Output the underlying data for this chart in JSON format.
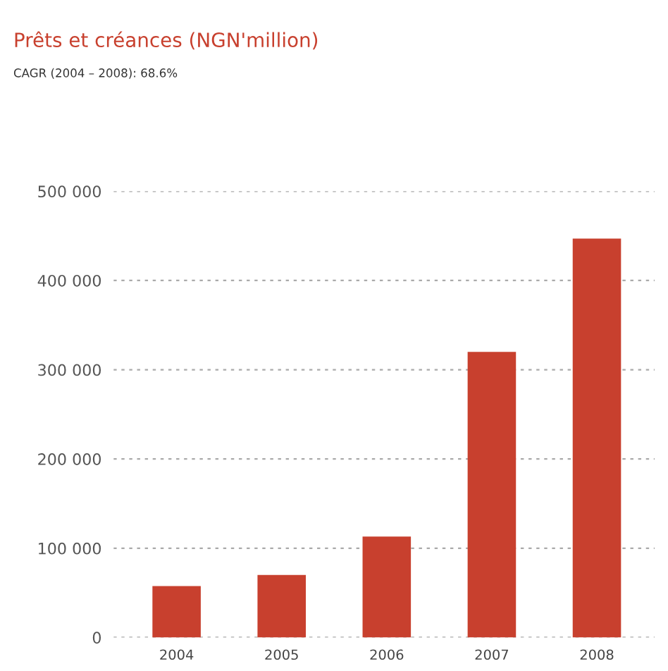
{
  "chart_data": {
    "type": "bar",
    "title": "Prêts et créances (NGN'million)",
    "subtitle": "CAGR (2004 – 2008): 68.6%",
    "categories": [
      "2004",
      "2005",
      "2006",
      "2007",
      "2008"
    ],
    "values": [
      57500,
      70000,
      113000,
      320000,
      447000
    ],
    "color": "#c8402e",
    "ylim": [
      0,
      500000
    ],
    "yticks": [
      {
        "value": 0,
        "label": "0"
      },
      {
        "value": 100000,
        "label": "100 000"
      },
      {
        "value": 200000,
        "label": "200 000"
      },
      {
        "value": 300000,
        "label": "300 000"
      },
      {
        "value": 400000,
        "label": "400 000"
      },
      {
        "value": 500000,
        "label": "500 000"
      }
    ],
    "grid": "y"
  }
}
